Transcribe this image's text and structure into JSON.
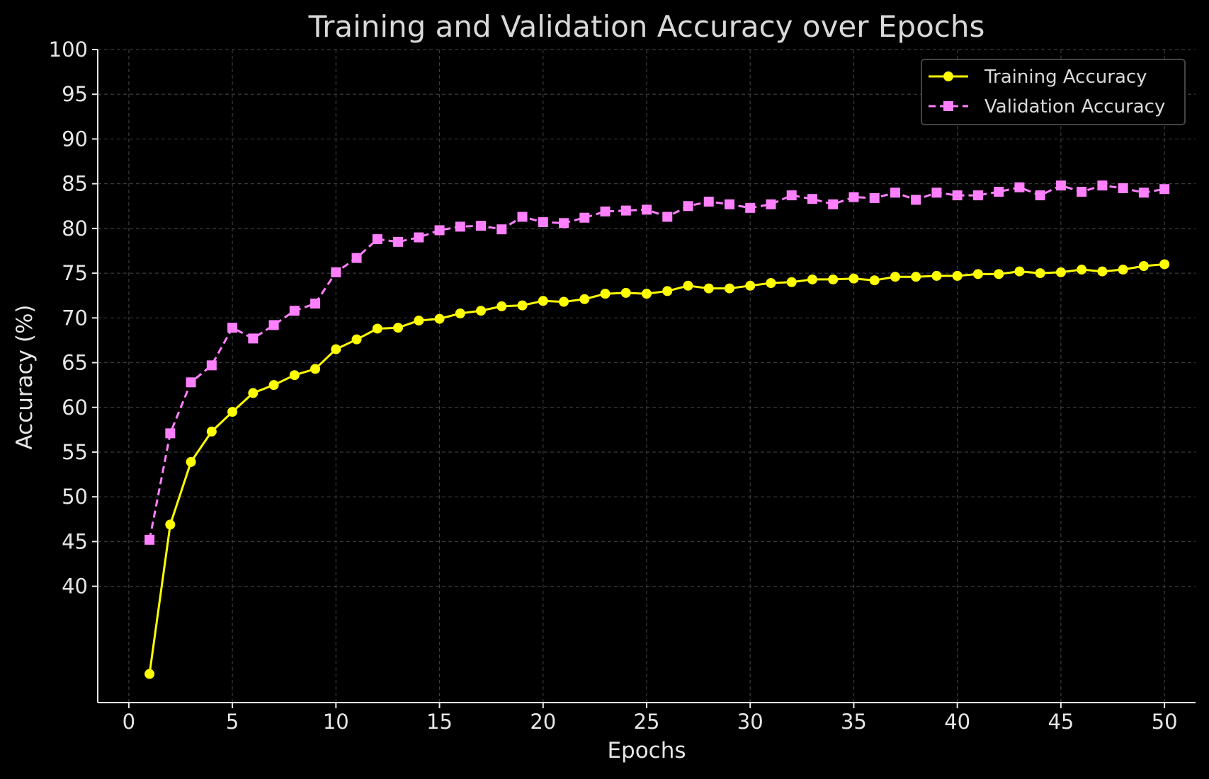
{
  "chart_data": {
    "type": "line",
    "title": "Training and Validation Accuracy over Epochs",
    "xlabel": "Epochs",
    "ylabel": "Accuracy (%)",
    "xlim": [
      -1.5,
      51.5
    ],
    "ylim": [
      27,
      100
    ],
    "xticks": [
      0,
      5,
      10,
      15,
      20,
      25,
      30,
      35,
      40,
      45,
      50
    ],
    "yticks": [
      40,
      45,
      50,
      55,
      60,
      65,
      70,
      75,
      80,
      85,
      90,
      95,
      100
    ],
    "grid": true,
    "legend_position": "top-right",
    "x": [
      1,
      2,
      3,
      4,
      5,
      6,
      7,
      8,
      9,
      10,
      11,
      12,
      13,
      14,
      15,
      16,
      17,
      18,
      19,
      20,
      21,
      22,
      23,
      24,
      25,
      26,
      27,
      28,
      29,
      30,
      31,
      32,
      33,
      34,
      35,
      36,
      37,
      38,
      39,
      40,
      41,
      42,
      43,
      44,
      45,
      46,
      47,
      48,
      49,
      50
    ],
    "series": [
      {
        "name": "Training Accuracy",
        "color": "#ffff00",
        "line_style": "solid",
        "marker": "circle",
        "values": [
          30.2,
          46.9,
          53.9,
          57.3,
          59.5,
          61.6,
          62.5,
          63.6,
          64.3,
          66.5,
          67.6,
          68.8,
          68.9,
          69.7,
          69.9,
          70.5,
          70.8,
          71.3,
          71.4,
          71.9,
          71.8,
          72.1,
          72.7,
          72.8,
          72.7,
          73.0,
          73.6,
          73.3,
          73.3,
          73.6,
          73.9,
          74.0,
          74.3,
          74.3,
          74.4,
          74.2,
          74.6,
          74.6,
          74.7,
          74.7,
          74.9,
          74.9,
          75.2,
          75.0,
          75.1,
          75.4,
          75.2,
          75.4,
          75.8,
          76.0
        ]
      },
      {
        "name": "Validation Accuracy",
        "color": "#ff80ff",
        "line_style": "dashed",
        "marker": "square",
        "values": [
          45.2,
          57.1,
          62.8,
          64.7,
          68.9,
          67.7,
          69.2,
          70.8,
          71.6,
          75.1,
          76.7,
          78.8,
          78.5,
          79.0,
          79.8,
          80.2,
          80.3,
          79.9,
          81.3,
          80.7,
          80.6,
          81.2,
          81.9,
          82.0,
          82.1,
          81.3,
          82.5,
          83.0,
          82.7,
          82.3,
          82.7,
          83.7,
          83.3,
          82.7,
          83.5,
          83.4,
          84.0,
          83.2,
          84.0,
          83.7,
          83.7,
          84.1,
          84.6,
          83.7,
          84.8,
          84.1,
          84.8,
          84.5,
          84.0,
          84.4
        ]
      }
    ]
  }
}
